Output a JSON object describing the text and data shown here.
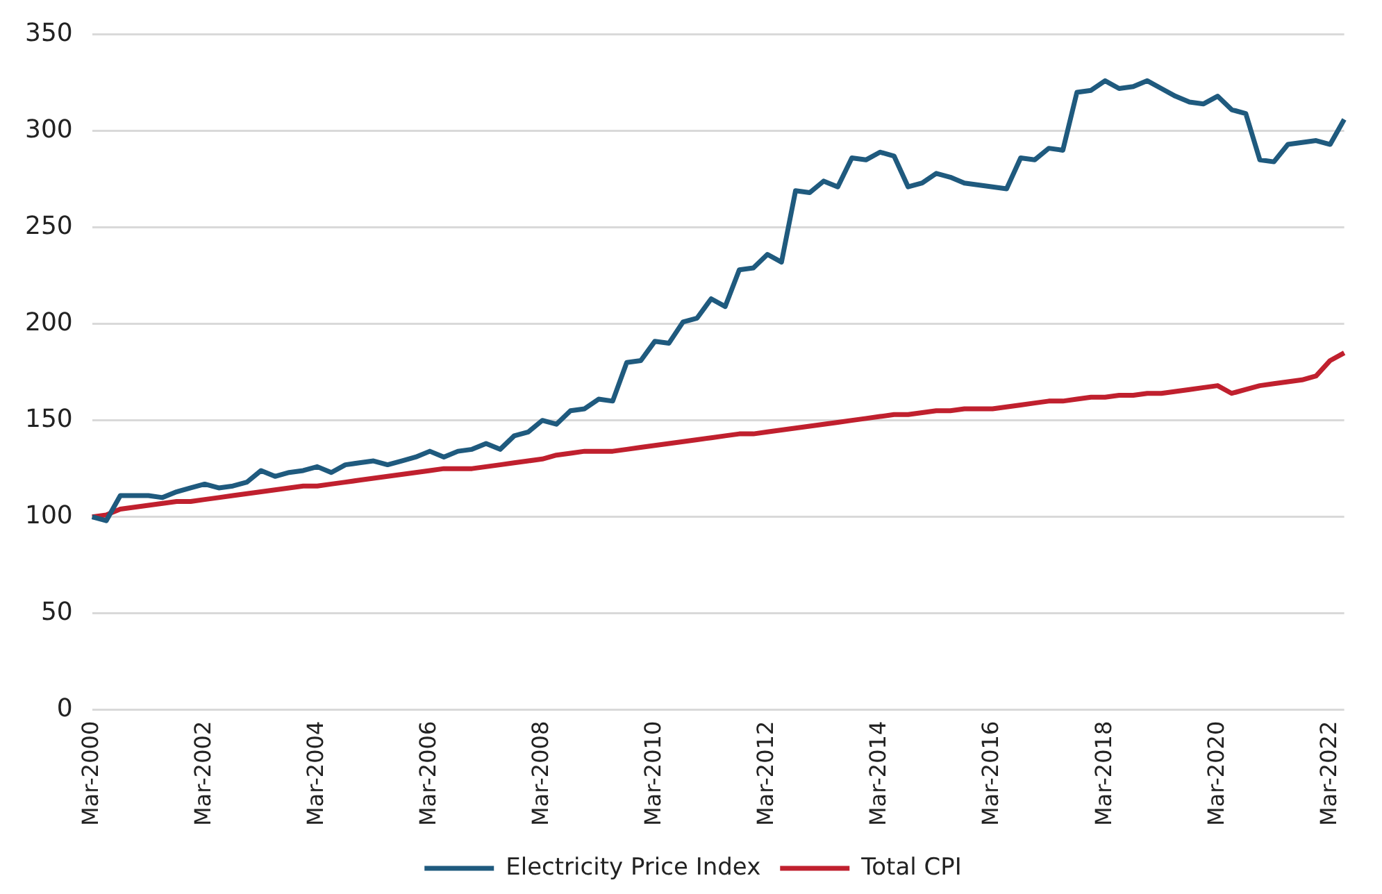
{
  "chart_data": {
    "type": "line",
    "categories": [
      "Mar-2000",
      null,
      null,
      null,
      null,
      null,
      null,
      null,
      "Mar-2002",
      null,
      null,
      null,
      null,
      null,
      null,
      null,
      "Mar-2004",
      null,
      null,
      null,
      null,
      null,
      null,
      null,
      "Mar-2006",
      null,
      null,
      null,
      null,
      null,
      null,
      null,
      "Mar-2008",
      null,
      null,
      null,
      null,
      null,
      null,
      null,
      "Mar-2010",
      null,
      null,
      null,
      null,
      null,
      null,
      null,
      "Mar-2012",
      null,
      null,
      null,
      null,
      null,
      null,
      null,
      "Mar-2014",
      null,
      null,
      null,
      null,
      null,
      null,
      null,
      "Mar-2016",
      null,
      null,
      null,
      null,
      null,
      null,
      null,
      "Mar-2018",
      null,
      null,
      null,
      null,
      null,
      null,
      null,
      "Mar-2020",
      null,
      null,
      null,
      null,
      null,
      null,
      null,
      "Mar-2022",
      null
    ],
    "series": [
      {
        "name": "Electricity Price Index",
        "color": "#1f5a7e",
        "values": [
          100,
          98,
          111,
          111,
          111,
          110,
          113,
          115,
          117,
          115,
          116,
          118,
          124,
          121,
          123,
          124,
          126,
          123,
          127,
          128,
          129,
          127,
          129,
          131,
          134,
          131,
          134,
          135,
          138,
          135,
          142,
          144,
          150,
          148,
          155,
          156,
          161,
          160,
          180,
          181,
          191,
          190,
          201,
          203,
          213,
          209,
          228,
          229,
          236,
          232,
          269,
          268,
          274,
          271,
          286,
          285,
          289,
          287,
          271,
          273,
          278,
          276,
          273,
          272,
          271,
          270,
          286,
          285,
          291,
          290,
          320,
          321,
          326,
          322,
          323,
          326,
          322,
          318,
          315,
          314,
          318,
          311,
          309,
          285,
          284,
          293,
          294,
          295,
          293,
          306
        ]
      },
      {
        "name": "Total CPI",
        "color": "#c0202e",
        "values": [
          100,
          101,
          104,
          105,
          106,
          107,
          108,
          108,
          109,
          110,
          111,
          112,
          113,
          114,
          115,
          116,
          116,
          117,
          118,
          119,
          120,
          121,
          122,
          123,
          124,
          125,
          125,
          125,
          126,
          127,
          128,
          129,
          130,
          132,
          133,
          134,
          134,
          134,
          135,
          136,
          137,
          138,
          139,
          140,
          141,
          142,
          143,
          143,
          144,
          145,
          146,
          147,
          148,
          149,
          150,
          151,
          152,
          153,
          153,
          154,
          155,
          155,
          156,
          156,
          156,
          157,
          158,
          159,
          160,
          160,
          161,
          162,
          162,
          163,
          163,
          164,
          164,
          165,
          166,
          167,
          168,
          164,
          166,
          168,
          169,
          170,
          171,
          173,
          181,
          185
        ]
      }
    ],
    "ylim": [
      0,
      350
    ],
    "yticks": [
      0,
      50,
      100,
      150,
      200,
      250,
      300,
      350
    ],
    "grid": "y",
    "legend": "bottom",
    "marker": "none",
    "line_style": "solid"
  }
}
